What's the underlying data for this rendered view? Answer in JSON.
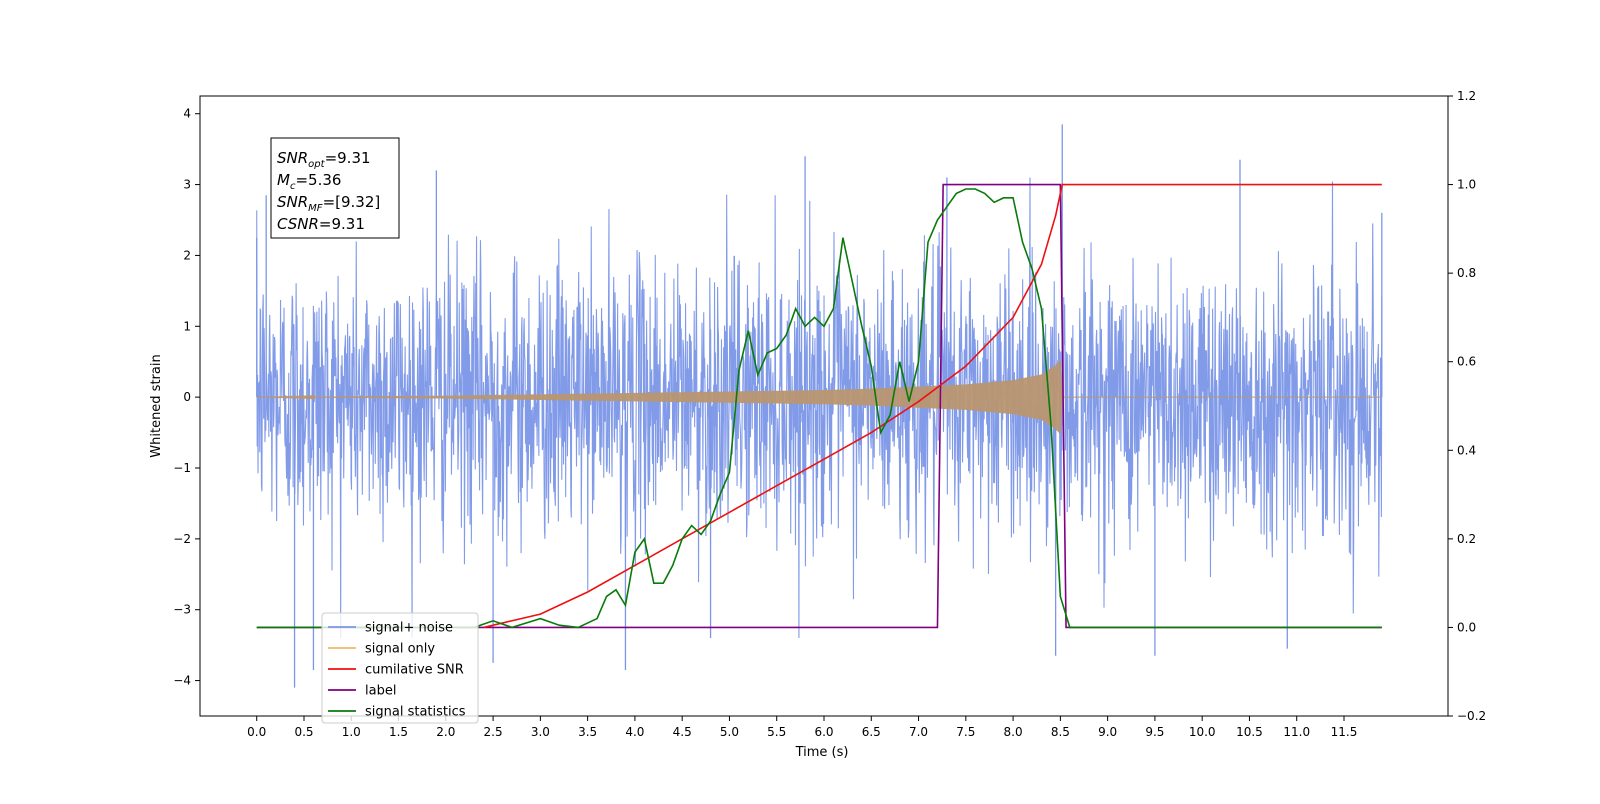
{
  "chart_data": {
    "type": "line",
    "title": "",
    "xlabel": "Time (s)",
    "ylabel": "Whitened strain",
    "xlim": [
      -0.6,
      12.6
    ],
    "ylim": [
      -4.5,
      4.25
    ],
    "y2lim": [
      -0.2,
      1.2
    ],
    "grid": false,
    "legend_position": "bottom-left",
    "x_ticks": [
      "0.0",
      "0.5",
      "1.0",
      "1.5",
      "2.0",
      "2.5",
      "3.0",
      "3.5",
      "4.0",
      "4.5",
      "5.0",
      "5.5",
      "6.0",
      "6.5",
      "7.0",
      "7.5",
      "8.0",
      "8.5",
      "9.0",
      "9.5",
      "10.0",
      "10.5",
      "11.0",
      "11.5"
    ],
    "y_ticks": [
      "−4",
      "−3",
      "−2",
      "−1",
      "0",
      "1",
      "2",
      "3",
      "4"
    ],
    "y2_ticks": [
      "−0.2",
      "0.0",
      "0.2",
      "0.4",
      "0.6",
      "0.8",
      "1.0",
      "1.2"
    ],
    "annotation": {
      "lines": [
        {
          "sym": "SNR",
          "sub": "opt",
          "value": "=9.31"
        },
        {
          "sym": "M",
          "sub": "c",
          "value": "=5.36"
        },
        {
          "sym": "SNR",
          "sub": "MF",
          "value": "=[9.32]"
        },
        {
          "sym": "CSNR",
          "sub": "",
          "value": "=9.31"
        }
      ]
    },
    "series": [
      {
        "name": "signal+ noise",
        "color": "#7b96e8",
        "axis": "left",
        "description": "dense whitened noise, approx. uniform amplitude; peaks",
        "x": [
          0.0,
          0.1,
          0.4,
          0.6,
          1.9,
          2.5,
          3.9,
          4.8,
          5.8,
          7.3,
          8.45,
          8.52,
          9.5,
          10.4,
          10.9,
          11.9
        ],
        "y": [
          2.25,
          2.85,
          -4.1,
          -3.85,
          3.2,
          -3.75,
          -3.85,
          -3.4,
          3.4,
          3.1,
          -3.65,
          3.85,
          -3.65,
          3.35,
          -3.55,
          2.6
        ]
      },
      {
        "name": "signal only",
        "color": "#f0b86a",
        "axis": "left",
        "description": "chirp envelope (amplitude)",
        "x": [
          0.0,
          1.0,
          2.0,
          3.0,
          4.0,
          5.0,
          6.0,
          6.5,
          7.0,
          7.5,
          8.0,
          8.3,
          8.45,
          8.5,
          8.52,
          11.9
        ],
        "y": [
          0.0,
          0.01,
          0.02,
          0.04,
          0.06,
          0.08,
          0.1,
          0.12,
          0.15,
          0.18,
          0.24,
          0.32,
          0.45,
          0.52,
          0.0,
          0.0
        ]
      },
      {
        "name": "cumilative SNR",
        "color": "#ee1111",
        "axis": "right",
        "x": [
          2.4,
          3.0,
          3.5,
          4.0,
          4.5,
          5.0,
          5.5,
          6.0,
          6.5,
          7.0,
          7.5,
          8.0,
          8.3,
          8.45,
          8.52,
          11.9
        ],
        "y": [
          0.0,
          0.03,
          0.08,
          0.14,
          0.2,
          0.26,
          0.32,
          0.38,
          0.44,
          0.51,
          0.59,
          0.7,
          0.82,
          0.93,
          1.0,
          1.0
        ]
      },
      {
        "name": "label",
        "color": "#800080",
        "axis": "right",
        "x": [
          0.0,
          7.2,
          7.26,
          8.5,
          8.56,
          11.9
        ],
        "y": [
          0.0,
          0.0,
          1.0,
          1.0,
          0.0,
          0.0
        ]
      },
      {
        "name": "signal statistics",
        "color": "#0a7a0a",
        "axis": "right",
        "x": [
          0.0,
          2.3,
          2.5,
          2.7,
          3.0,
          3.2,
          3.4,
          3.6,
          3.7,
          3.8,
          3.9,
          4.0,
          4.1,
          4.2,
          4.3,
          4.4,
          4.5,
          4.6,
          4.7,
          4.8,
          4.9,
          5.0,
          5.1,
          5.2,
          5.3,
          5.4,
          5.5,
          5.6,
          5.7,
          5.8,
          5.9,
          6.0,
          6.1,
          6.2,
          6.3,
          6.4,
          6.5,
          6.6,
          6.7,
          6.8,
          6.9,
          7.0,
          7.1,
          7.2,
          7.3,
          7.4,
          7.5,
          7.6,
          7.7,
          7.8,
          7.9,
          8.0,
          8.1,
          8.2,
          8.3,
          8.4,
          8.5,
          8.6,
          9.0,
          11.9
        ],
        "y": [
          0.0,
          0.0,
          0.015,
          0.0,
          0.02,
          0.005,
          0.0,
          0.02,
          0.07,
          0.085,
          0.05,
          0.17,
          0.2,
          0.1,
          0.1,
          0.14,
          0.2,
          0.23,
          0.21,
          0.24,
          0.3,
          0.35,
          0.58,
          0.67,
          0.57,
          0.62,
          0.63,
          0.66,
          0.72,
          0.68,
          0.7,
          0.68,
          0.72,
          0.88,
          0.78,
          0.68,
          0.59,
          0.44,
          0.48,
          0.6,
          0.51,
          0.6,
          0.87,
          0.92,
          0.95,
          0.98,
          0.99,
          0.99,
          0.98,
          0.96,
          0.97,
          0.97,
          0.87,
          0.81,
          0.72,
          0.46,
          0.07,
          0.0,
          0.0,
          0.0
        ]
      }
    ],
    "legend": [
      {
        "label": "signal+ noise",
        "color": "#7b96e8"
      },
      {
        "label": "signal only",
        "color": "#f0b86a"
      },
      {
        "label": "cumilative SNR",
        "color": "#ee1111"
      },
      {
        "label": "label",
        "color": "#800080"
      },
      {
        "label": "signal statistics",
        "color": "#0a7a0a"
      }
    ]
  }
}
